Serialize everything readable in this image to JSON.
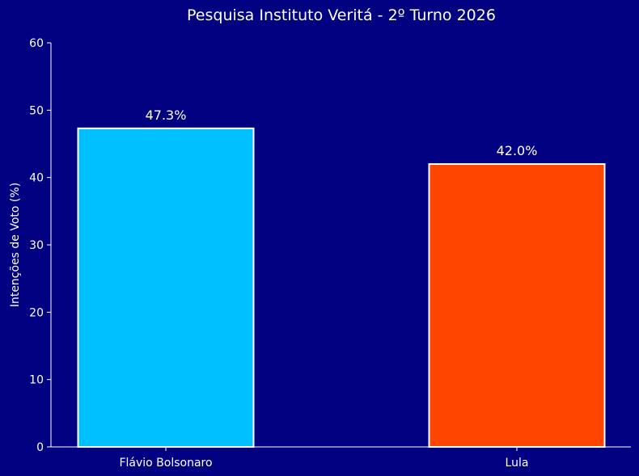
{
  "chart_data": {
    "type": "bar",
    "title": "Pesquisa Instituto Veritá - 2º Turno 2026",
    "xlabel": "",
    "ylabel": "Intenções de Voto (%)",
    "ylim": [
      0,
      60
    ],
    "yticks": [
      0,
      10,
      20,
      30,
      40,
      50,
      60
    ],
    "categories": [
      "Flávio Bolsonaro",
      "Lula"
    ],
    "values": [
      47.3,
      42.0
    ],
    "data_labels": [
      "47.3%",
      "42.0%"
    ],
    "colors": [
      "#00BFFF",
      "#FF4500"
    ],
    "bar_edge_color": "#ffffff",
    "background_color": "#000080",
    "axis_color": "#ffffff",
    "grid": false,
    "legend": "none"
  }
}
